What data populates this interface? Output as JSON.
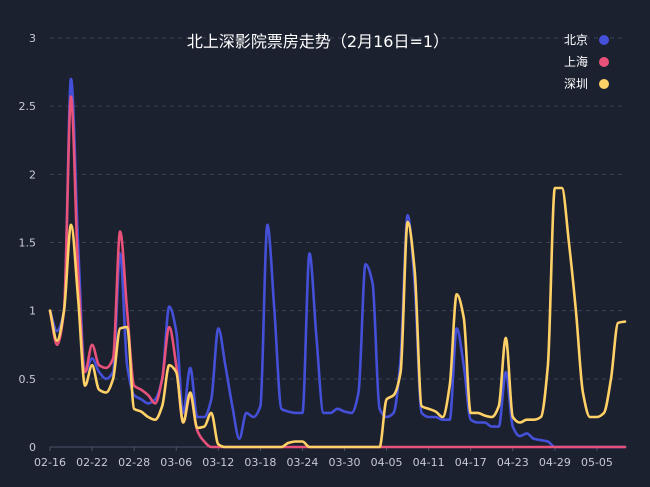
{
  "chart_data": {
    "type": "line",
    "title": "北上深影院票房走势（2月16日=1）",
    "xlabel": "",
    "ylabel": "",
    "ylim": [
      0,
      3
    ],
    "yticks": [
      "0",
      "0.5",
      "1",
      "1.5",
      "2",
      "2.5",
      "3"
    ],
    "x_start": "2022-02-16",
    "x_end": "2022-05-09",
    "xticks": [
      "02-16",
      "02-22",
      "02-28",
      "03-06",
      "03-12",
      "03-18",
      "03-24",
      "03-30",
      "04-05",
      "04-11",
      "04-17",
      "04-23",
      "04-29",
      "05-05"
    ],
    "grid": "horizontal-dashed",
    "legend_position": "top-right",
    "series": [
      {
        "name": "北京",
        "color": "#4450d8",
        "points": [
          [
            "2022-02-16",
            1.0
          ],
          [
            "2022-02-17",
            0.85
          ],
          [
            "2022-02-18",
            1.0
          ],
          [
            "2022-02-19",
            2.7
          ],
          [
            "2022-02-20",
            1.5
          ],
          [
            "2022-02-21",
            0.55
          ],
          [
            "2022-02-22",
            0.65
          ],
          [
            "2022-02-23",
            0.55
          ],
          [
            "2022-02-24",
            0.5
          ],
          [
            "2022-02-25",
            0.55
          ],
          [
            "2022-02-26",
            1.42
          ],
          [
            "2022-02-27",
            0.6
          ],
          [
            "2022-02-28",
            0.38
          ],
          [
            "2022-03-01",
            0.35
          ],
          [
            "2022-03-02",
            0.32
          ],
          [
            "2022-03-03",
            0.35
          ],
          [
            "2022-03-04",
            0.5
          ],
          [
            "2022-03-05",
            1.03
          ],
          [
            "2022-03-06",
            0.85
          ],
          [
            "2022-03-07",
            0.25
          ],
          [
            "2022-03-08",
            0.58
          ],
          [
            "2022-03-09",
            0.22
          ],
          [
            "2022-03-10",
            0.22
          ],
          [
            "2022-03-11",
            0.35
          ],
          [
            "2022-03-12",
            0.87
          ],
          [
            "2022-03-13",
            0.6
          ],
          [
            "2022-03-14",
            0.3
          ],
          [
            "2022-03-15",
            0.06
          ],
          [
            "2022-03-16",
            0.25
          ],
          [
            "2022-03-17",
            0.22
          ],
          [
            "2022-03-18",
            0.3
          ],
          [
            "2022-03-19",
            1.63
          ],
          [
            "2022-03-20",
            1.0
          ],
          [
            "2022-03-21",
            0.28
          ],
          [
            "2022-03-22",
            0.26
          ],
          [
            "2022-03-23",
            0.25
          ],
          [
            "2022-03-24",
            0.25
          ],
          [
            "2022-03-25",
            1.42
          ],
          [
            "2022-03-26",
            0.8
          ],
          [
            "2022-03-27",
            0.25
          ],
          [
            "2022-03-28",
            0.25
          ],
          [
            "2022-03-29",
            0.28
          ],
          [
            "2022-03-30",
            0.26
          ],
          [
            "2022-03-31",
            0.25
          ],
          [
            "2022-04-01",
            0.4
          ],
          [
            "2022-04-02",
            1.34
          ],
          [
            "2022-04-03",
            1.2
          ],
          [
            "2022-04-04",
            0.28
          ],
          [
            "2022-04-05",
            0.22
          ],
          [
            "2022-04-06",
            0.25
          ],
          [
            "2022-04-07",
            0.65
          ],
          [
            "2022-04-08",
            1.7
          ],
          [
            "2022-04-09",
            1.2
          ],
          [
            "2022-04-10",
            0.25
          ],
          [
            "2022-04-11",
            0.22
          ],
          [
            "2022-04-12",
            0.22
          ],
          [
            "2022-04-13",
            0.2
          ],
          [
            "2022-04-14",
            0.2
          ],
          [
            "2022-04-15",
            0.87
          ],
          [
            "2022-04-16",
            0.6
          ],
          [
            "2022-04-17",
            0.2
          ],
          [
            "2022-04-18",
            0.18
          ],
          [
            "2022-04-19",
            0.18
          ],
          [
            "2022-04-20",
            0.15
          ],
          [
            "2022-04-21",
            0.15
          ],
          [
            "2022-04-22",
            0.55
          ],
          [
            "2022-04-23",
            0.15
          ],
          [
            "2022-04-24",
            0.08
          ],
          [
            "2022-04-25",
            0.1
          ],
          [
            "2022-04-26",
            0.06
          ],
          [
            "2022-04-27",
            0.05
          ],
          [
            "2022-04-28",
            0.04
          ],
          [
            "2022-04-29",
            0.0
          ],
          [
            "2022-04-30",
            0.0
          ],
          [
            "2022-05-01",
            0.0
          ],
          [
            "2022-05-02",
            0.0
          ],
          [
            "2022-05-03",
            0.0
          ],
          [
            "2022-05-04",
            0.0
          ],
          [
            "2022-05-05",
            0.0
          ],
          [
            "2022-05-06",
            0.0
          ],
          [
            "2022-05-07",
            0.0
          ],
          [
            "2022-05-08",
            0.0
          ],
          [
            "2022-05-09",
            0.0
          ]
        ]
      },
      {
        "name": "上海",
        "color": "#e8527a",
        "points": [
          [
            "2022-02-16",
            1.0
          ],
          [
            "2022-02-17",
            0.75
          ],
          [
            "2022-02-18",
            1.0
          ],
          [
            "2022-02-19",
            2.57
          ],
          [
            "2022-02-20",
            1.3
          ],
          [
            "2022-02-21",
            0.55
          ],
          [
            "2022-02-22",
            0.75
          ],
          [
            "2022-02-23",
            0.6
          ],
          [
            "2022-02-24",
            0.58
          ],
          [
            "2022-02-25",
            0.65
          ],
          [
            "2022-02-26",
            1.58
          ],
          [
            "2022-02-27",
            1.0
          ],
          [
            "2022-02-28",
            0.45
          ],
          [
            "2022-03-01",
            0.42
          ],
          [
            "2022-03-02",
            0.38
          ],
          [
            "2022-03-03",
            0.32
          ],
          [
            "2022-03-04",
            0.5
          ],
          [
            "2022-03-05",
            0.88
          ],
          [
            "2022-03-06",
            0.6
          ],
          [
            "2022-03-07",
            0.18
          ],
          [
            "2022-03-08",
            0.38
          ],
          [
            "2022-03-09",
            0.12
          ],
          [
            "2022-03-10",
            0.04
          ],
          [
            "2022-03-11",
            0.0
          ],
          [
            "2022-03-12",
            0.0
          ],
          [
            "2022-03-13",
            0.0
          ],
          [
            "2022-03-14",
            0.0
          ],
          [
            "2022-03-15",
            0.0
          ],
          [
            "2022-03-16",
            0.0
          ],
          [
            "2022-03-17",
            0.0
          ],
          [
            "2022-03-18",
            0.0
          ],
          [
            "2022-03-19",
            0.0
          ],
          [
            "2022-03-20",
            0.0
          ],
          [
            "2022-03-21",
            0.0
          ],
          [
            "2022-03-22",
            0.0
          ],
          [
            "2022-03-23",
            0.0
          ],
          [
            "2022-03-24",
            0.0
          ],
          [
            "2022-03-25",
            0.0
          ],
          [
            "2022-03-26",
            0.0
          ],
          [
            "2022-03-27",
            0.0
          ],
          [
            "2022-03-28",
            0.0
          ],
          [
            "2022-03-29",
            0.0
          ],
          [
            "2022-03-30",
            0.0
          ],
          [
            "2022-03-31",
            0.0
          ],
          [
            "2022-04-01",
            0.0
          ],
          [
            "2022-04-02",
            0.0
          ],
          [
            "2022-04-03",
            0.0
          ],
          [
            "2022-04-04",
            0.0
          ],
          [
            "2022-04-05",
            0.0
          ],
          [
            "2022-04-06",
            0.0
          ],
          [
            "2022-04-07",
            0.0
          ],
          [
            "2022-04-08",
            0.0
          ],
          [
            "2022-04-09",
            0.0
          ],
          [
            "2022-04-10",
            0.0
          ],
          [
            "2022-04-11",
            0.0
          ],
          [
            "2022-04-12",
            0.0
          ],
          [
            "2022-04-13",
            0.0
          ],
          [
            "2022-04-14",
            0.0
          ],
          [
            "2022-04-15",
            0.0
          ],
          [
            "2022-04-16",
            0.0
          ],
          [
            "2022-04-17",
            0.0
          ],
          [
            "2022-04-18",
            0.0
          ],
          [
            "2022-04-19",
            0.0
          ],
          [
            "2022-04-20",
            0.0
          ],
          [
            "2022-04-21",
            0.0
          ],
          [
            "2022-04-22",
            0.0
          ],
          [
            "2022-04-23",
            0.0
          ],
          [
            "2022-04-24",
            0.0
          ],
          [
            "2022-04-25",
            0.0
          ],
          [
            "2022-04-26",
            0.0
          ],
          [
            "2022-04-27",
            0.0
          ],
          [
            "2022-04-28",
            0.0
          ],
          [
            "2022-04-29",
            0.0
          ],
          [
            "2022-04-30",
            0.0
          ],
          [
            "2022-05-01",
            0.0
          ],
          [
            "2022-05-02",
            0.0
          ],
          [
            "2022-05-03",
            0.0
          ],
          [
            "2022-05-04",
            0.0
          ],
          [
            "2022-05-05",
            0.0
          ],
          [
            "2022-05-06",
            0.0
          ],
          [
            "2022-05-07",
            0.0
          ],
          [
            "2022-05-08",
            0.0
          ],
          [
            "2022-05-09",
            0.0
          ]
        ]
      },
      {
        "name": "深圳",
        "color": "#ffd166",
        "points": [
          [
            "2022-02-16",
            1.0
          ],
          [
            "2022-02-17",
            0.78
          ],
          [
            "2022-02-18",
            1.0
          ],
          [
            "2022-02-19",
            1.63
          ],
          [
            "2022-02-20",
            1.1
          ],
          [
            "2022-02-21",
            0.45
          ],
          [
            "2022-02-22",
            0.6
          ],
          [
            "2022-02-23",
            0.42
          ],
          [
            "2022-02-24",
            0.4
          ],
          [
            "2022-02-25",
            0.5
          ],
          [
            "2022-02-26",
            0.87
          ],
          [
            "2022-02-27",
            0.88
          ],
          [
            "2022-02-28",
            0.28
          ],
          [
            "2022-03-01",
            0.26
          ],
          [
            "2022-03-02",
            0.22
          ],
          [
            "2022-03-03",
            0.2
          ],
          [
            "2022-03-04",
            0.3
          ],
          [
            "2022-03-05",
            0.6
          ],
          [
            "2022-03-06",
            0.55
          ],
          [
            "2022-03-07",
            0.18
          ],
          [
            "2022-03-08",
            0.4
          ],
          [
            "2022-03-09",
            0.14
          ],
          [
            "2022-03-10",
            0.15
          ],
          [
            "2022-03-11",
            0.25
          ],
          [
            "2022-03-12",
            0.02
          ],
          [
            "2022-03-13",
            0.0
          ],
          [
            "2022-03-14",
            0.0
          ],
          [
            "2022-03-15",
            0.0
          ],
          [
            "2022-03-16",
            0.0
          ],
          [
            "2022-03-17",
            0.0
          ],
          [
            "2022-03-18",
            0.0
          ],
          [
            "2022-03-19",
            0.0
          ],
          [
            "2022-03-20",
            0.0
          ],
          [
            "2022-03-21",
            0.0
          ],
          [
            "2022-03-22",
            0.03
          ],
          [
            "2022-03-23",
            0.04
          ],
          [
            "2022-03-24",
            0.04
          ],
          [
            "2022-03-25",
            0.0
          ],
          [
            "2022-03-26",
            0.0
          ],
          [
            "2022-03-27",
            0.0
          ],
          [
            "2022-03-28",
            0.0
          ],
          [
            "2022-03-29",
            0.0
          ],
          [
            "2022-03-30",
            0.0
          ],
          [
            "2022-03-31",
            0.0
          ],
          [
            "2022-04-01",
            0.0
          ],
          [
            "2022-04-02",
            0.0
          ],
          [
            "2022-04-03",
            0.0
          ],
          [
            "2022-04-04",
            0.0
          ],
          [
            "2022-04-05",
            0.35
          ],
          [
            "2022-04-06",
            0.38
          ],
          [
            "2022-04-07",
            0.55
          ],
          [
            "2022-04-08",
            1.65
          ],
          [
            "2022-04-09",
            1.3
          ],
          [
            "2022-04-10",
            0.3
          ],
          [
            "2022-04-11",
            0.28
          ],
          [
            "2022-04-12",
            0.26
          ],
          [
            "2022-04-13",
            0.22
          ],
          [
            "2022-04-14",
            0.45
          ],
          [
            "2022-04-15",
            1.12
          ],
          [
            "2022-04-16",
            0.95
          ],
          [
            "2022-04-17",
            0.25
          ],
          [
            "2022-04-18",
            0.25
          ],
          [
            "2022-04-19",
            0.23
          ],
          [
            "2022-04-20",
            0.22
          ],
          [
            "2022-04-21",
            0.3
          ],
          [
            "2022-04-22",
            0.8
          ],
          [
            "2022-04-23",
            0.22
          ],
          [
            "2022-04-24",
            0.18
          ],
          [
            "2022-04-25",
            0.2
          ],
          [
            "2022-04-26",
            0.2
          ],
          [
            "2022-04-27",
            0.22
          ],
          [
            "2022-04-28",
            0.6
          ],
          [
            "2022-04-29",
            1.9
          ],
          [
            "2022-04-30",
            1.9
          ],
          [
            "2022-05-01",
            1.5
          ],
          [
            "2022-05-02",
            1.0
          ],
          [
            "2022-05-03",
            0.4
          ],
          [
            "2022-05-04",
            0.22
          ],
          [
            "2022-05-05",
            0.22
          ],
          [
            "2022-05-06",
            0.25
          ],
          [
            "2022-05-07",
            0.5
          ],
          [
            "2022-05-08",
            0.91
          ],
          [
            "2022-05-09",
            0.92
          ]
        ]
      }
    ]
  }
}
